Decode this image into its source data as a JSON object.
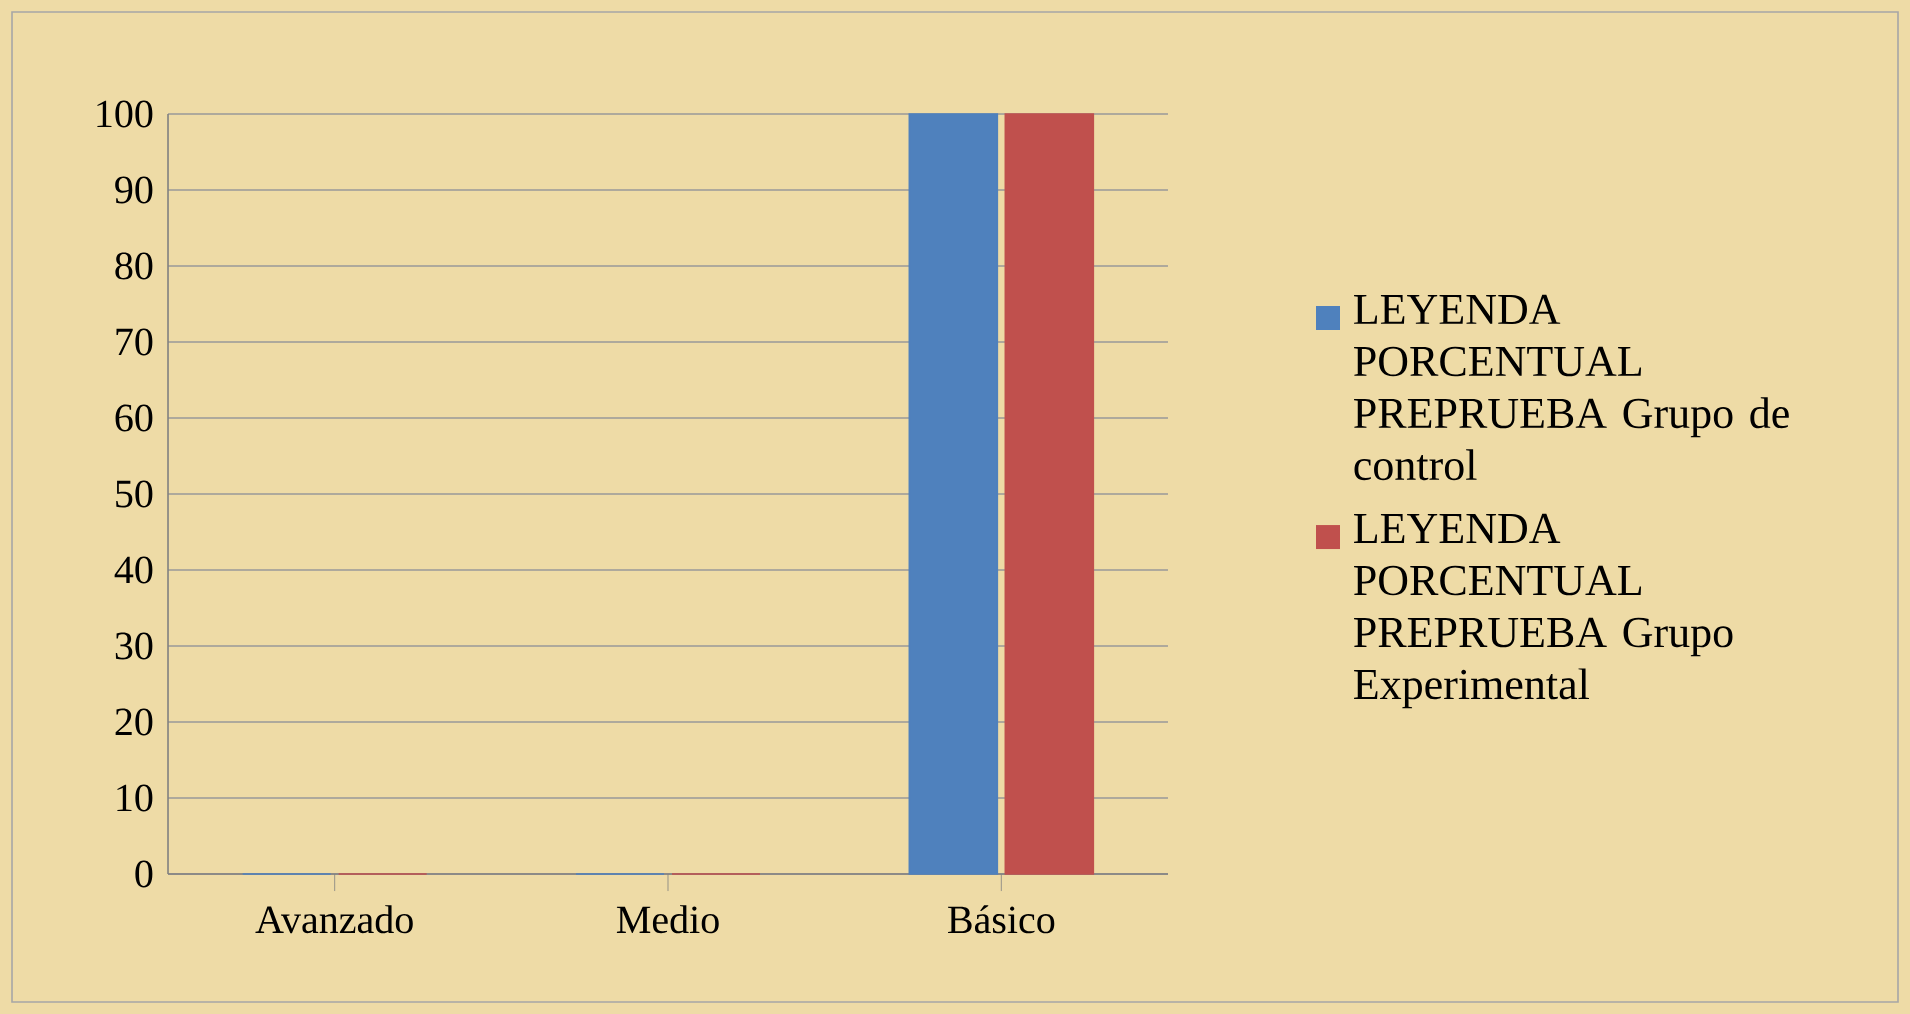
{
  "chart_data": {
    "type": "bar",
    "categories": [
      "Avanzado",
      "Medio",
      "Básico"
    ],
    "series": [
      {
        "name": "LEYENDA PORCENTUAL PREPRUEBA Grupo de control",
        "color": "#4f81bd",
        "values": [
          0,
          0,
          100
        ]
      },
      {
        "name": "LEYENDA PORCENTUAL PREPRUEBA Grupo Experimental",
        "color": "#c0504d",
        "values": [
          0,
          0,
          100
        ]
      }
    ],
    "ylim": [
      0,
      100
    ],
    "yticks": [
      0,
      10,
      20,
      30,
      40,
      50,
      60,
      70,
      80,
      90,
      100
    ],
    "grid": "y",
    "legend": "right"
  }
}
